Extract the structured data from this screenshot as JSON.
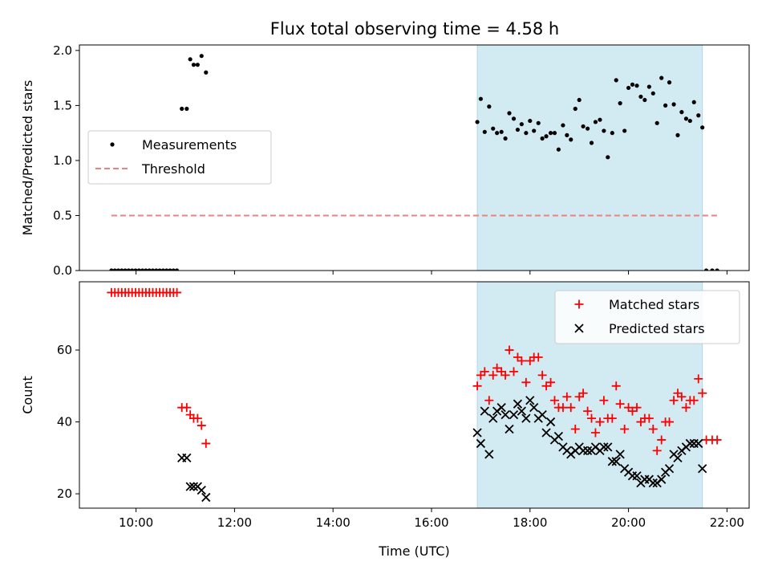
{
  "figure": {
    "title": "Flux total observing time = 4.58 h"
  },
  "chart_data": [
    {
      "type": "scatter",
      "ylabel": "Matched/Predicted stars",
      "xlim": [
        8.85,
        22.45
      ],
      "ylim": [
        0,
        2.05
      ],
      "y_ticks": [
        0.0,
        0.5,
        1.0,
        1.5,
        2.0
      ],
      "y_tick_labels": [
        "0.0",
        "0.5",
        "1.0",
        "1.5",
        "2.0"
      ],
      "shaded_span": {
        "x": [
          16.93,
          21.5
        ],
        "color": "#add8e6"
      },
      "legend_position": "center-left",
      "series": [
        {
          "name": "Measurements",
          "marker": "dot",
          "color": "#000000",
          "x": [
            9.5,
            9.57,
            9.64,
            9.71,
            9.78,
            9.85,
            9.92,
            9.99,
            10.06,
            10.13,
            10.2,
            10.27,
            10.34,
            10.41,
            10.48,
            10.55,
            10.62,
            10.69,
            10.76,
            10.83,
            10.93,
            11.03,
            11.1,
            11.17,
            11.25,
            11.33,
            11.42,
            16.93,
            17.0,
            17.08,
            17.17,
            17.25,
            17.33,
            17.42,
            17.5,
            17.58,
            17.67,
            17.75,
            17.83,
            17.92,
            18.0,
            18.08,
            18.17,
            18.25,
            18.33,
            18.42,
            18.5,
            18.58,
            18.67,
            18.75,
            18.83,
            18.92,
            19.0,
            19.08,
            19.17,
            19.25,
            19.33,
            19.42,
            19.5,
            19.58,
            19.67,
            19.75,
            19.83,
            19.92,
            20.0,
            20.08,
            20.17,
            20.25,
            20.33,
            20.42,
            20.5,
            20.58,
            20.67,
            20.75,
            20.83,
            20.92,
            21.0,
            21.08,
            21.17,
            21.25,
            21.33,
            21.42,
            21.5,
            21.58,
            21.7,
            21.8
          ],
          "y": [
            0,
            0,
            0,
            0,
            0,
            0,
            0,
            0,
            0,
            0,
            0,
            0,
            0,
            0,
            0,
            0,
            0,
            0,
            0,
            0,
            1.47,
            1.47,
            1.92,
            1.87,
            1.87,
            1.95,
            1.8,
            1.35,
            1.56,
            1.26,
            1.49,
            1.29,
            1.25,
            1.26,
            1.2,
            1.43,
            1.38,
            1.28,
            1.33,
            1.25,
            1.36,
            1.27,
            1.34,
            1.2,
            1.22,
            1.25,
            1.25,
            1.1,
            1.32,
            1.23,
            1.19,
            1.47,
            1.55,
            1.31,
            1.29,
            1.16,
            1.35,
            1.37,
            1.27,
            1.03,
            1.25,
            1.73,
            1.52,
            1.27,
            1.66,
            1.69,
            1.68,
            1.58,
            1.55,
            1.67,
            1.61,
            1.34,
            1.75,
            1.5,
            1.71,
            1.51,
            1.23,
            1.44,
            1.38,
            1.36,
            1.53,
            1.41,
            1.3,
            0,
            0,
            0
          ]
        },
        {
          "name": "Threshold",
          "style": "dashed-line",
          "color": "#f08080",
          "x": [
            9.5,
            21.8
          ],
          "y": [
            0.5,
            0.5
          ]
        }
      ]
    },
    {
      "type": "scatter",
      "xlabel": "Time (UTC)",
      "ylabel": "Count",
      "xlim": [
        8.85,
        22.45
      ],
      "ylim": [
        16,
        79
      ],
      "x_ticks": [
        10,
        12,
        14,
        16,
        18,
        20,
        22
      ],
      "x_tick_labels": [
        "10:00",
        "12:00",
        "14:00",
        "16:00",
        "18:00",
        "20:00",
        "22:00"
      ],
      "y_ticks": [
        20,
        40,
        60
      ],
      "y_tick_labels": [
        "20",
        "40",
        "60"
      ],
      "shaded_span": {
        "x": [
          16.93,
          21.5
        ],
        "color": "#add8e6"
      },
      "legend_position": "top-right",
      "series": [
        {
          "name": "Matched stars",
          "marker": "plus",
          "color": "#ff0000",
          "x": [
            9.5,
            9.57,
            9.64,
            9.71,
            9.78,
            9.85,
            9.92,
            9.99,
            10.06,
            10.13,
            10.2,
            10.27,
            10.34,
            10.41,
            10.48,
            10.55,
            10.62,
            10.69,
            10.76,
            10.83,
            10.93,
            11.03,
            11.1,
            11.17,
            11.25,
            11.33,
            11.42,
            16.93,
            17.0,
            17.08,
            17.17,
            17.25,
            17.33,
            17.42,
            17.5,
            17.58,
            17.67,
            17.75,
            17.83,
            17.92,
            18.0,
            18.08,
            18.17,
            18.25,
            18.33,
            18.42,
            18.5,
            18.58,
            18.67,
            18.75,
            18.83,
            18.92,
            19.0,
            19.08,
            19.17,
            19.25,
            19.33,
            19.42,
            19.5,
            19.58,
            19.67,
            19.75,
            19.83,
            19.92,
            20.0,
            20.08,
            20.17,
            20.25,
            20.33,
            20.42,
            20.5,
            20.58,
            20.67,
            20.75,
            20.83,
            20.92,
            21.0,
            21.08,
            21.17,
            21.25,
            21.33,
            21.42,
            21.5,
            21.58,
            21.7,
            21.8
          ],
          "y": [
            76,
            76,
            76,
            76,
            76,
            76,
            76,
            76,
            76,
            76,
            76,
            76,
            76,
            76,
            76,
            76,
            76,
            76,
            76,
            76,
            44,
            44,
            42,
            41,
            41,
            39,
            34,
            50,
            53,
            54,
            46,
            53,
            55,
            54,
            53,
            60,
            54,
            58,
            57,
            51,
            57,
            58,
            58,
            53,
            50,
            51,
            46,
            44,
            44,
            47,
            44,
            38,
            47,
            48,
            43,
            41,
            37,
            40,
            46,
            41,
            41,
            50,
            45,
            38,
            44,
            43,
            44,
            40,
            41,
            41,
            38,
            32,
            35,
            40,
            40,
            46,
            48,
            47,
            44,
            46,
            46,
            52,
            48,
            35,
            35,
            35
          ]
        },
        {
          "name": "Predicted stars",
          "marker": "x",
          "color": "#000000",
          "x": [
            10.93,
            11.03,
            11.1,
            11.17,
            11.25,
            11.33,
            11.42,
            16.93,
            17.0,
            17.08,
            17.17,
            17.25,
            17.33,
            17.42,
            17.5,
            17.58,
            17.67,
            17.75,
            17.83,
            17.92,
            18.0,
            18.08,
            18.17,
            18.25,
            18.33,
            18.42,
            18.5,
            18.58,
            18.67,
            18.75,
            18.83,
            18.92,
            19.0,
            19.08,
            19.17,
            19.25,
            19.33,
            19.42,
            19.5,
            19.58,
            19.67,
            19.75,
            19.83,
            19.92,
            20.0,
            20.08,
            20.17,
            20.25,
            20.33,
            20.42,
            20.5,
            20.58,
            20.67,
            20.75,
            20.83,
            20.92,
            21.0,
            21.08,
            21.17,
            21.25,
            21.33,
            21.42,
            21.5
          ],
          "y": [
            30,
            30,
            22,
            22,
            22,
            21,
            19,
            37,
            34,
            43,
            31,
            41,
            43,
            44,
            42,
            38,
            42,
            45,
            43,
            41,
            46,
            44,
            41,
            42,
            37,
            40,
            35,
            36,
            33,
            32,
            31,
            32,
            33,
            32,
            32,
            32,
            33,
            32,
            33,
            33,
            29,
            29,
            31,
            27,
            26,
            25,
            25,
            23,
            24,
            24,
            23,
            23,
            24,
            26,
            27,
            31,
            30,
            32,
            33,
            34,
            34,
            34,
            27
          ]
        }
      ]
    }
  ]
}
